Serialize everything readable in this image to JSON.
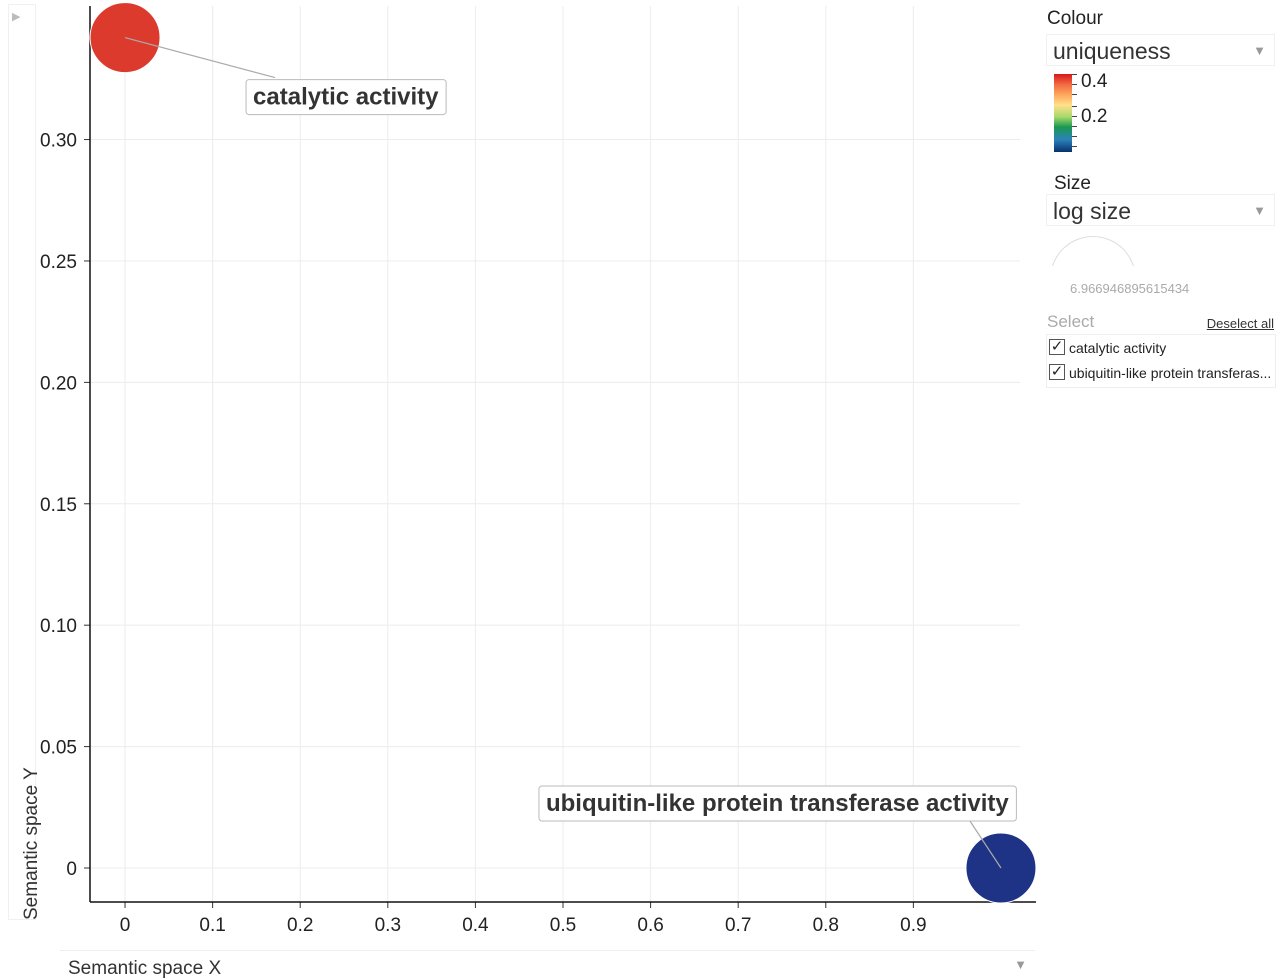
{
  "chart_data": {
    "type": "scatter",
    "xlabel": "Semantic space X",
    "ylabel": "Semantic space Y",
    "xlim": [
      -0.04,
      1.04
    ],
    "ylim": [
      -0.014,
      0.355
    ],
    "xticks": [
      "0",
      "0.1",
      "0.2",
      "0.3",
      "0.4",
      "0.5",
      "0.6",
      "0.7",
      "0.8",
      "0.9"
    ],
    "yticks": [
      "0",
      "0.05",
      "0.10",
      "0.15",
      "0.20",
      "0.25",
      "0.30"
    ],
    "grid": true,
    "points": [
      {
        "label": "catalytic activity",
        "x": 0.0,
        "y": 0.342,
        "uniqueness": 0.42,
        "color": "#dd3a2e"
      },
      {
        "label": "ubiquitin-like protein transferase activity",
        "x": 1.0,
        "y": 0.0,
        "uniqueness": 0.0,
        "color": "#1f3386"
      }
    ]
  },
  "controls": {
    "colour_title": "Colour",
    "colour_select": "uniqueness",
    "colour_labels": [
      "0.4",
      "0.2"
    ],
    "size_title": "Size",
    "size_select": "log size",
    "size_value": "6.966946895615434",
    "select_title": "Select",
    "deselect_all": "Deselect all",
    "items": [
      {
        "label": "catalytic activity",
        "checked": "✓"
      },
      {
        "label": "ubiquitin-like protein transferas...",
        "checked": "✓"
      }
    ]
  }
}
